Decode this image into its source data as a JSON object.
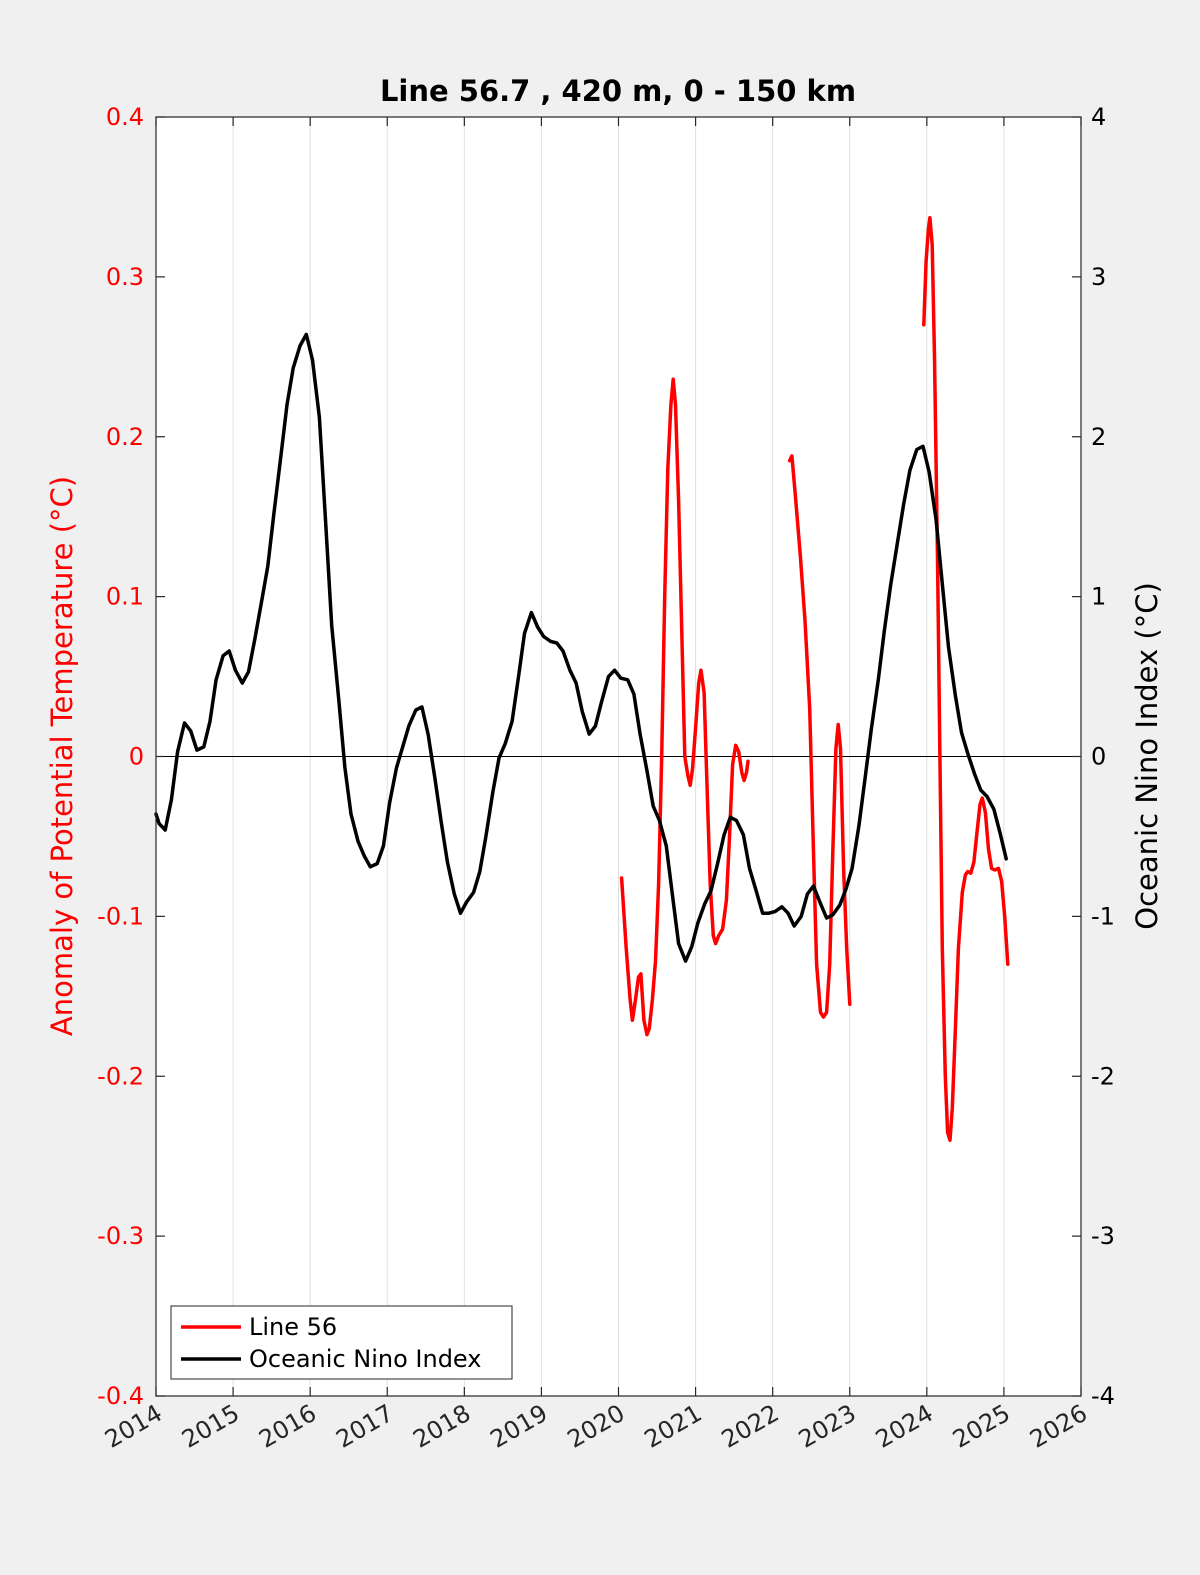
{
  "chart_data": {
    "type": "line",
    "title": "Line 56.7 , 420 m, 0 - 150 km",
    "xlabel": "",
    "xlim": [
      2014,
      2026
    ],
    "xticks": [
      "2014",
      "2015",
      "2016",
      "2017",
      "2018",
      "2019",
      "2020",
      "2021",
      "2022",
      "2023",
      "2024",
      "2025",
      "2026"
    ],
    "y_left": {
      "label": "Anomaly of Potential Temperature (°C)",
      "lim": [
        -0.4,
        0.4
      ],
      "ticks": [
        "-0.4",
        "-0.3",
        "-0.2",
        "-0.1",
        "0",
        "0.1",
        "0.2",
        "0.3",
        "0.4"
      ],
      "color": "#ff0000"
    },
    "y_right": {
      "label": "Oceanic Nino Index (°C)",
      "lim": [
        -4,
        4
      ],
      "ticks": [
        "-4",
        "-3",
        "-2",
        "-1",
        "0",
        "1",
        "2",
        "3",
        "4"
      ],
      "color": "#000000"
    },
    "grid": "vertical",
    "zero_line": true,
    "legend": {
      "position": "bottom-left",
      "entries": [
        "Line 56",
        "Oceanic Nino Index"
      ]
    },
    "series": [
      {
        "name": "Line 56",
        "axis": "left",
        "color": "#ff0000",
        "segments": [
          [
            [
              2020.04,
              -0.076
            ],
            [
              2020.1,
              -0.12
            ],
            [
              2020.15,
              -0.152
            ],
            [
              2020.18,
              -0.165
            ],
            [
              2020.22,
              -0.152
            ],
            [
              2020.26,
              -0.138
            ],
            [
              2020.29,
              -0.136
            ],
            [
              2020.33,
              -0.165
            ],
            [
              2020.37,
              -0.174
            ],
            [
              2020.4,
              -0.17
            ],
            [
              2020.44,
              -0.152
            ],
            [
              2020.48,
              -0.128
            ],
            [
              2020.52,
              -0.08
            ],
            [
              2020.56,
              0.0
            ],
            [
              2020.6,
              0.1
            ],
            [
              2020.64,
              0.18
            ],
            [
              2020.68,
              0.22
            ],
            [
              2020.71,
              0.236
            ],
            [
              2020.74,
              0.22
            ],
            [
              2020.78,
              0.16
            ],
            [
              2020.82,
              0.08
            ],
            [
              2020.86,
              0.0
            ],
            [
              2020.9,
              -0.012
            ],
            [
              2020.93,
              -0.018
            ],
            [
              2020.96,
              -0.008
            ],
            [
              2021.0,
              0.018
            ],
            [
              2021.04,
              0.046
            ],
            [
              2021.07,
              0.054
            ],
            [
              2021.11,
              0.04
            ],
            [
              2021.15,
              -0.02
            ],
            [
              2021.19,
              -0.08
            ],
            [
              2021.23,
              -0.112
            ],
            [
              2021.26,
              -0.117
            ],
            [
              2021.3,
              -0.112
            ],
            [
              2021.35,
              -0.108
            ],
            [
              2021.4,
              -0.09
            ],
            [
              2021.44,
              -0.05
            ],
            [
              2021.48,
              -0.005
            ],
            [
              2021.52,
              0.007
            ],
            [
              2021.56,
              0.003
            ],
            [
              2021.6,
              -0.01
            ],
            [
              2021.63,
              -0.015
            ],
            [
              2021.66,
              -0.01
            ],
            [
              2021.68,
              -0.003
            ]
          ],
          [
            [
              2022.22,
              0.185
            ],
            [
              2022.25,
              0.188
            ],
            [
              2022.3,
              0.16
            ],
            [
              2022.36,
              0.125
            ],
            [
              2022.42,
              0.085
            ],
            [
              2022.48,
              0.03
            ],
            [
              2022.53,
              -0.06
            ],
            [
              2022.57,
              -0.13
            ],
            [
              2022.62,
              -0.16
            ],
            [
              2022.66,
              -0.163
            ],
            [
              2022.7,
              -0.16
            ],
            [
              2022.74,
              -0.13
            ],
            [
              2022.78,
              -0.06
            ],
            [
              2022.82,
              0.005
            ],
            [
              2022.85,
              0.02
            ],
            [
              2022.88,
              0.005
            ],
            [
              2022.92,
              -0.07
            ],
            [
              2022.96,
              -0.12
            ],
            [
              2023.0,
              -0.155
            ]
          ],
          [
            [
              2023.96,
              0.27
            ],
            [
              2023.99,
              0.31
            ],
            [
              2024.02,
              0.33
            ],
            [
              2024.04,
              0.337
            ],
            [
              2024.07,
              0.32
            ],
            [
              2024.1,
              0.25
            ],
            [
              2024.14,
              0.12
            ],
            [
              2024.17,
              0.0
            ],
            [
              2024.2,
              -0.12
            ],
            [
              2024.24,
              -0.2
            ],
            [
              2024.27,
              -0.235
            ],
            [
              2024.3,
              -0.24
            ],
            [
              2024.33,
              -0.22
            ],
            [
              2024.37,
              -0.17
            ],
            [
              2024.41,
              -0.12
            ],
            [
              2024.46,
              -0.085
            ],
            [
              2024.5,
              -0.074
            ],
            [
              2024.53,
              -0.072
            ],
            [
              2024.57,
              -0.073
            ],
            [
              2024.61,
              -0.066
            ],
            [
              2024.65,
              -0.048
            ],
            [
              2024.69,
              -0.03
            ],
            [
              2024.72,
              -0.026
            ],
            [
              2024.76,
              -0.035
            ],
            [
              2024.8,
              -0.058
            ],
            [
              2024.84,
              -0.07
            ],
            [
              2024.88,
              -0.071
            ],
            [
              2024.93,
              -0.07
            ],
            [
              2024.97,
              -0.078
            ],
            [
              2025.01,
              -0.1
            ],
            [
              2025.05,
              -0.13
            ]
          ]
        ]
      },
      {
        "name": "Oceanic Nino Index",
        "axis": "right",
        "color": "#000000",
        "points": [
          [
            2014.0,
            -0.36
          ],
          [
            2014.04,
            -0.42
          ],
          [
            2014.12,
            -0.46
          ],
          [
            2014.2,
            -0.27
          ],
          [
            2014.28,
            0.03
          ],
          [
            2014.37,
            0.21
          ],
          [
            2014.45,
            0.16
          ],
          [
            2014.53,
            0.04
          ],
          [
            2014.62,
            0.06
          ],
          [
            2014.7,
            0.22
          ],
          [
            2014.78,
            0.48
          ],
          [
            2014.87,
            0.63
          ],
          [
            2014.95,
            0.66
          ],
          [
            2015.03,
            0.54
          ],
          [
            2015.12,
            0.46
          ],
          [
            2015.2,
            0.53
          ],
          [
            2015.28,
            0.73
          ],
          [
            2015.37,
            0.97
          ],
          [
            2015.45,
            1.19
          ],
          [
            2015.53,
            1.52
          ],
          [
            2015.62,
            1.88
          ],
          [
            2015.7,
            2.2
          ],
          [
            2015.78,
            2.43
          ],
          [
            2015.87,
            2.57
          ],
          [
            2015.95,
            2.64
          ],
          [
            2016.03,
            2.48
          ],
          [
            2016.12,
            2.12
          ],
          [
            2016.2,
            1.47
          ],
          [
            2016.28,
            0.82
          ],
          [
            2016.37,
            0.36
          ],
          [
            2016.45,
            -0.07
          ],
          [
            2016.53,
            -0.36
          ],
          [
            2016.62,
            -0.53
          ],
          [
            2016.7,
            -0.62
          ],
          [
            2016.78,
            -0.69
          ],
          [
            2016.87,
            -0.67
          ],
          [
            2016.95,
            -0.56
          ],
          [
            2017.03,
            -0.29
          ],
          [
            2017.12,
            -0.07
          ],
          [
            2017.2,
            0.06
          ],
          [
            2017.28,
            0.19
          ],
          [
            2017.37,
            0.29
          ],
          [
            2017.45,
            0.31
          ],
          [
            2017.53,
            0.14
          ],
          [
            2017.62,
            -0.14
          ],
          [
            2017.7,
            -0.41
          ],
          [
            2017.78,
            -0.66
          ],
          [
            2017.87,
            -0.86
          ],
          [
            2017.95,
            -0.98
          ],
          [
            2018.03,
            -0.91
          ],
          [
            2018.12,
            -0.85
          ],
          [
            2018.2,
            -0.72
          ],
          [
            2018.28,
            -0.5
          ],
          [
            2018.37,
            -0.22
          ],
          [
            2018.45,
            -0.01
          ],
          [
            2018.53,
            0.08
          ],
          [
            2018.62,
            0.22
          ],
          [
            2018.7,
            0.49
          ],
          [
            2018.78,
            0.77
          ],
          [
            2018.87,
            0.9
          ],
          [
            2018.95,
            0.81
          ],
          [
            2019.03,
            0.75
          ],
          [
            2019.12,
            0.72
          ],
          [
            2019.2,
            0.71
          ],
          [
            2019.28,
            0.66
          ],
          [
            2019.37,
            0.54
          ],
          [
            2019.45,
            0.46
          ],
          [
            2019.53,
            0.28
          ],
          [
            2019.62,
            0.14
          ],
          [
            2019.7,
            0.19
          ],
          [
            2019.78,
            0.34
          ],
          [
            2019.87,
            0.5
          ],
          [
            2019.95,
            0.54
          ],
          [
            2020.03,
            0.49
          ],
          [
            2020.12,
            0.48
          ],
          [
            2020.2,
            0.39
          ],
          [
            2020.28,
            0.14
          ],
          [
            2020.37,
            -0.09
          ],
          [
            2020.45,
            -0.31
          ],
          [
            2020.53,
            -0.4
          ],
          [
            2020.62,
            -0.56
          ],
          [
            2020.7,
            -0.87
          ],
          [
            2020.78,
            -1.17
          ],
          [
            2020.87,
            -1.28
          ],
          [
            2020.95,
            -1.19
          ],
          [
            2021.03,
            -1.04
          ],
          [
            2021.12,
            -0.92
          ],
          [
            2021.2,
            -0.84
          ],
          [
            2021.28,
            -0.68
          ],
          [
            2021.37,
            -0.49
          ],
          [
            2021.45,
            -0.38
          ],
          [
            2021.53,
            -0.4
          ],
          [
            2021.62,
            -0.49
          ],
          [
            2021.7,
            -0.7
          ],
          [
            2021.78,
            -0.83
          ],
          [
            2021.87,
            -0.98
          ],
          [
            2021.95,
            -0.98
          ],
          [
            2022.03,
            -0.97
          ],
          [
            2022.12,
            -0.94
          ],
          [
            2022.2,
            -0.98
          ],
          [
            2022.28,
            -1.06
          ],
          [
            2022.37,
            -1.0
          ],
          [
            2022.45,
            -0.86
          ],
          [
            2022.53,
            -0.81
          ],
          [
            2022.62,
            -0.92
          ],
          [
            2022.7,
            -1.01
          ],
          [
            2022.78,
            -0.99
          ],
          [
            2022.87,
            -0.93
          ],
          [
            2022.95,
            -0.83
          ],
          [
            2023.03,
            -0.7
          ],
          [
            2023.12,
            -0.43
          ],
          [
            2023.2,
            -0.13
          ],
          [
            2023.28,
            0.17
          ],
          [
            2023.37,
            0.48
          ],
          [
            2023.45,
            0.79
          ],
          [
            2023.53,
            1.07
          ],
          [
            2023.62,
            1.34
          ],
          [
            2023.7,
            1.58
          ],
          [
            2023.78,
            1.79
          ],
          [
            2023.87,
            1.92
          ],
          [
            2023.95,
            1.94
          ],
          [
            2024.03,
            1.78
          ],
          [
            2024.12,
            1.48
          ],
          [
            2024.2,
            1.08
          ],
          [
            2024.28,
            0.69
          ],
          [
            2024.37,
            0.38
          ],
          [
            2024.45,
            0.15
          ],
          [
            2024.53,
            0.02
          ],
          [
            2024.62,
            -0.11
          ],
          [
            2024.7,
            -0.21
          ],
          [
            2024.78,
            -0.25
          ],
          [
            2024.87,
            -0.33
          ],
          [
            2024.95,
            -0.48
          ],
          [
            2025.03,
            -0.64
          ]
        ]
      }
    ]
  }
}
